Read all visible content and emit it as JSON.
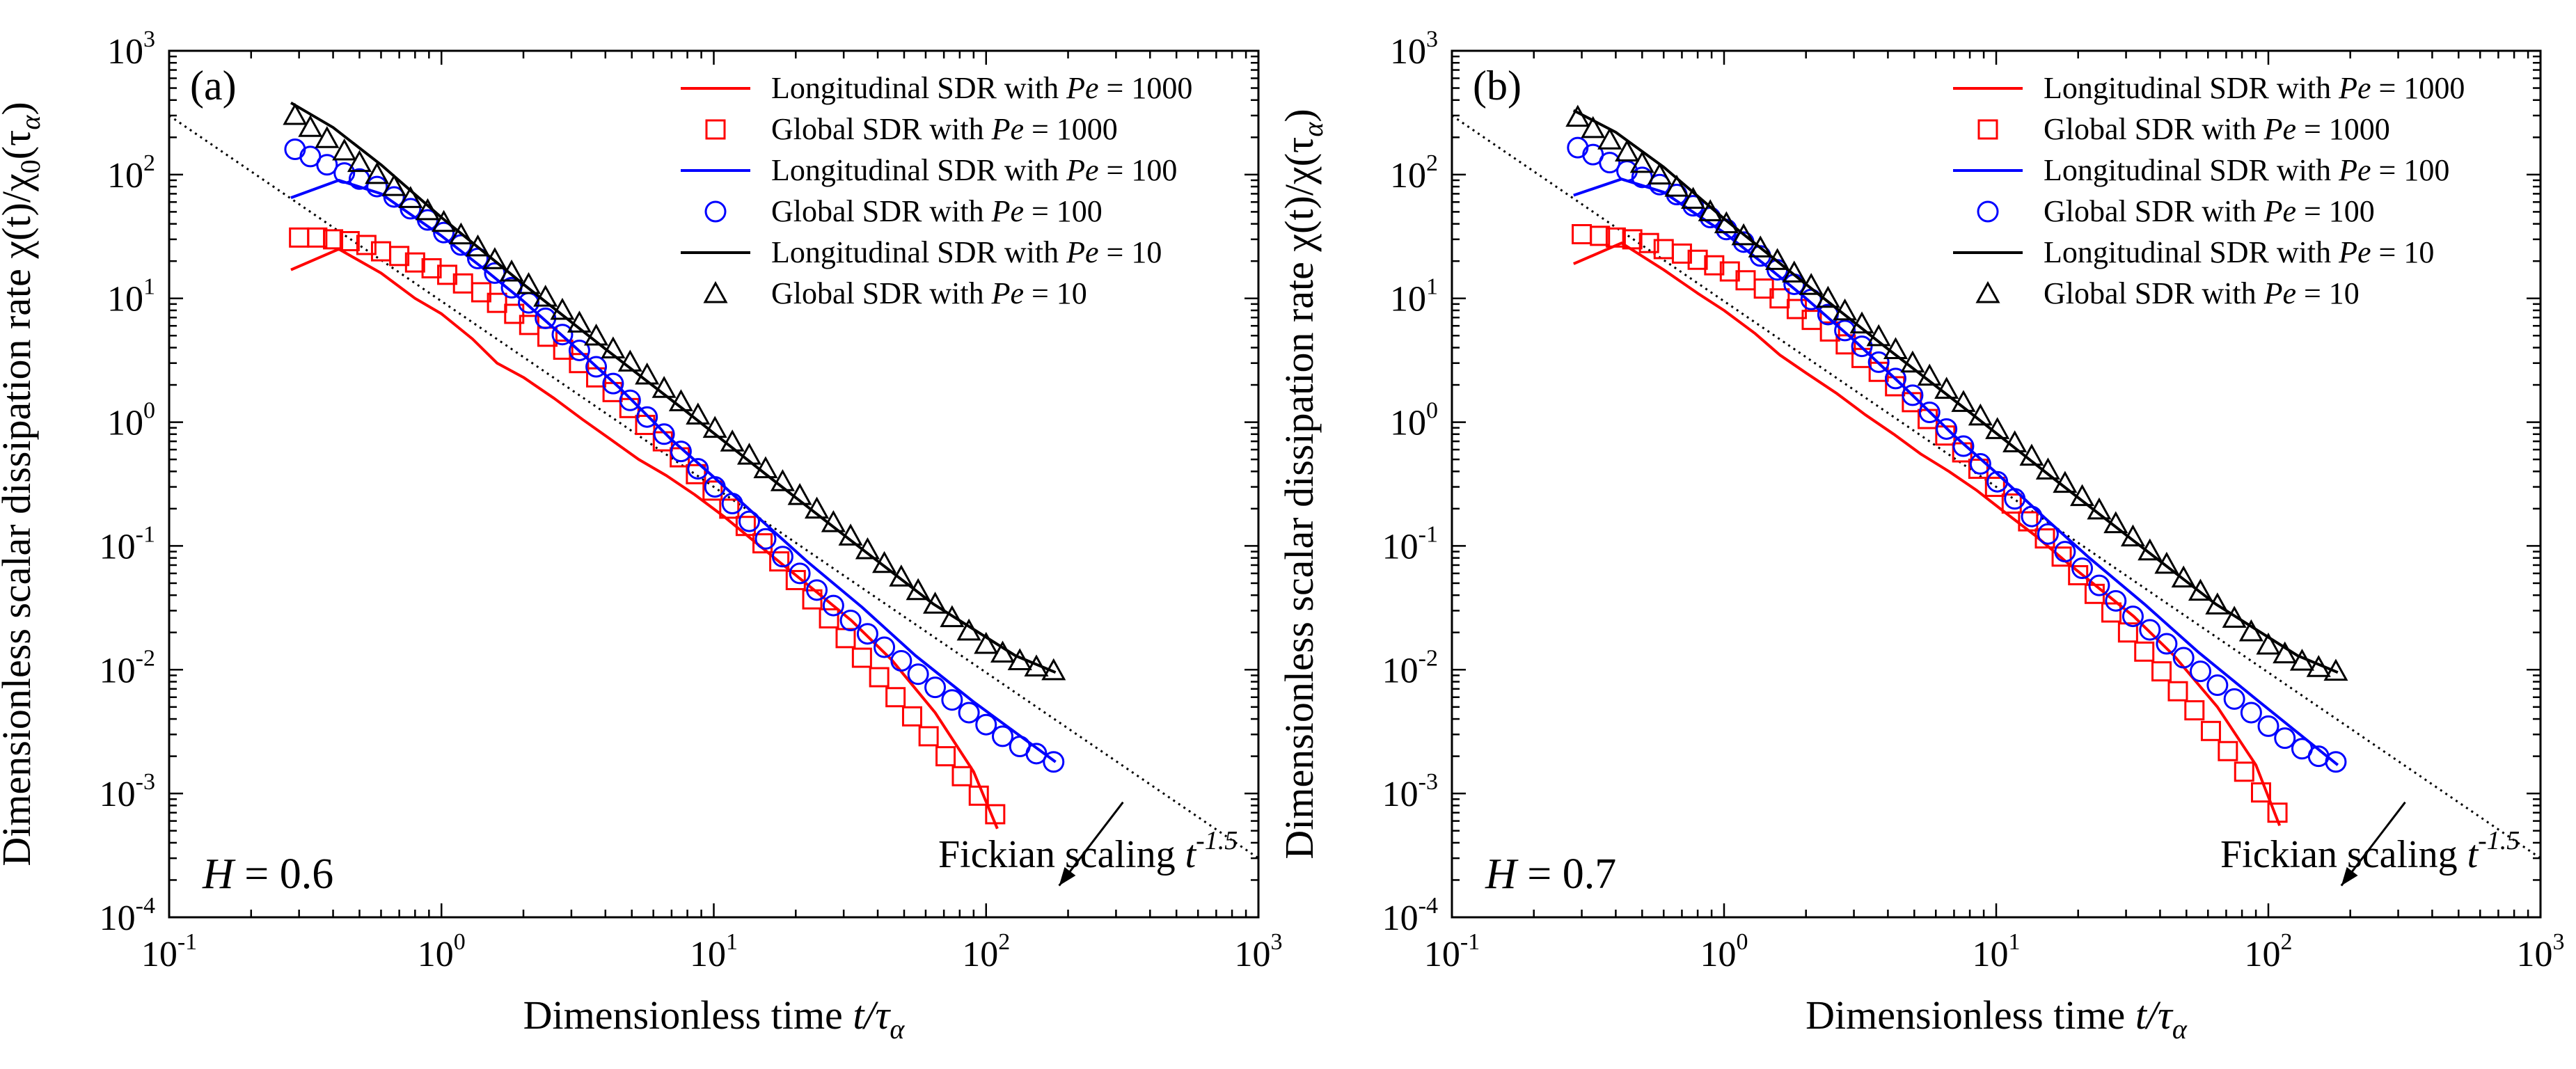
{
  "figure": {
    "x_axis_title": "Dimensionless time",
    "x_axis_var": "t/τ",
    "x_axis_sub": "α"
  },
  "colors": {
    "pe1000": "#ff0000",
    "pe100": "#0000ff",
    "pe10": "#000000"
  },
  "chart_data": [
    {
      "type": "line",
      "panel_label": "(a)",
      "annotation_h": "H = 0.6",
      "fickian_label": "Fickian scaling t",
      "fickian_exponent": "-1.5",
      "ylabel_prefix": "Dimensionless scalar dissipation rate χ(t)/χ",
      "ylabel_sub0": "0",
      "ylabel_mid": "(τ",
      "ylabel_sub1": "α",
      "ylabel_end": ")",
      "xscale": "log",
      "yscale": "log",
      "xlim": [
        0.1,
        1000
      ],
      "ylim": [
        0.0001,
        1000
      ],
      "x_ticks": [
        0.1,
        1,
        10,
        100,
        1000
      ],
      "x_tick_exponents": [
        "-1",
        "0",
        "1",
        "2",
        "3"
      ],
      "y_ticks": [
        0.0001,
        0.001,
        0.01,
        0.1,
        1,
        10,
        100,
        1000
      ],
      "y_tick_exponents": [
        "-4",
        "-3",
        "-2",
        "-1",
        "0",
        "1",
        "2",
        "3"
      ],
      "legend": [
        {
          "label": "Longitudinal SDR with ",
          "pe": "Pe",
          "value": " = 1000"
        },
        {
          "label": "Global SDR with ",
          "pe": "Pe",
          "value": " = 1000"
        },
        {
          "label": "Longitudinal SDR with ",
          "pe": "Pe",
          "value": " = 100"
        },
        {
          "label": "Global SDR with ",
          "pe": "Pe",
          "value": " = 100"
        },
        {
          "label": "Longitudinal SDR with ",
          "pe": "Pe",
          "value": " = 10"
        },
        {
          "label": "Global SDR with ",
          "pe": "Pe",
          "value": " = 10"
        }
      ],
      "fickian_line": {
        "x": [
          0.1,
          1000
        ],
        "y": [
          300,
          0.0003
        ]
      },
      "series": [
        {
          "name": "Longitudinal SDR Pe=1000",
          "kind": "line",
          "color": "pe1000",
          "x": [
            0.28,
            0.42,
            0.6,
            0.8,
            1.0,
            1.3,
            1.6,
            2.0,
            2.6,
            3.3,
            4.2,
            5.3,
            6.7,
            8.5,
            11,
            14,
            18,
            24,
            32,
            45,
            65,
            90,
            110
          ],
          "y": [
            17,
            25,
            16,
            10,
            7.5,
            4.7,
            3.0,
            2.3,
            1.55,
            1.05,
            0.72,
            0.5,
            0.37,
            0.26,
            0.17,
            0.11,
            0.07,
            0.042,
            0.025,
            0.012,
            0.0045,
            0.0015,
            0.00052
          ]
        },
        {
          "name": "Global SDR Pe=1000",
          "kind": "marker",
          "marker": "square",
          "color": "pe1000",
          "x": [
            0.3,
            0.35,
            0.4,
            0.46,
            0.53,
            0.6,
            0.7,
            0.8,
            0.92,
            1.05,
            1.2,
            1.4,
            1.6,
            1.85,
            2.1,
            2.45,
            2.8,
            3.2,
            3.7,
            4.25,
            4.9,
            5.6,
            6.5,
            7.5,
            8.6,
            9.9,
            11.4,
            13.1,
            15.1,
            17.4,
            20,
            23,
            26.5,
            30.5,
            35,
            40.5,
            46.5,
            53.5,
            61.5,
            71,
            81.5,
            94,
            108
          ],
          "y": [
            31,
            31,
            30,
            29,
            27,
            24,
            22,
            19.5,
            17.5,
            15.5,
            13.2,
            11.2,
            9.2,
            7.5,
            6.1,
            4.9,
            3.85,
            3.0,
            2.3,
            1.75,
            1.3,
            0.95,
            0.7,
            0.52,
            0.38,
            0.28,
            0.2,
            0.145,
            0.105,
            0.075,
            0.053,
            0.037,
            0.026,
            0.018,
            0.0125,
            0.0087,
            0.006,
            0.0042,
            0.0029,
            0.002,
            0.00138,
            0.00096,
            0.00068
          ]
        },
        {
          "name": "Longitudinal SDR Pe=100",
          "kind": "line",
          "color": "pe100",
          "x": [
            0.28,
            0.42,
            0.6,
            0.8,
            1.0,
            1.4,
            2.0,
            3.0,
            4.5,
            7,
            10,
            15,
            22,
            35,
            55,
            90,
            180
          ],
          "y": [
            65,
            90,
            70,
            45,
            32,
            18,
            9.5,
            4.3,
            1.9,
            0.72,
            0.36,
            0.16,
            0.075,
            0.032,
            0.013,
            0.0055,
            0.0018
          ]
        },
        {
          "name": "Global SDR Pe=100",
          "kind": "marker",
          "marker": "circle",
          "color": "pe100",
          "x": [
            0.29,
            0.33,
            0.38,
            0.44,
            0.5,
            0.58,
            0.67,
            0.77,
            0.89,
            1.02,
            1.18,
            1.36,
            1.57,
            1.81,
            2.09,
            2.41,
            2.78,
            3.21,
            3.7,
            4.27,
            4.93,
            5.69,
            6.57,
            7.58,
            8.75,
            10.1,
            11.7,
            13.5,
            15.5,
            17.9,
            20.7,
            23.9,
            27.5,
            31.8,
            36.7,
            42.3,
            48.8,
            56.3,
            65,
            75,
            86.5,
            100,
            115,
            133,
            153,
            177
          ],
          "y": [
            160,
            140,
            120,
            103,
            92,
            80,
            66,
            53,
            43,
            34,
            27,
            21,
            16,
            12.2,
            9.2,
            6.9,
            5.1,
            3.8,
            2.8,
            2.05,
            1.5,
            1.1,
            0.8,
            0.58,
            0.42,
            0.3,
            0.22,
            0.158,
            0.114,
            0.082,
            0.06,
            0.044,
            0.033,
            0.025,
            0.0195,
            0.0152,
            0.0118,
            0.0092,
            0.0072,
            0.0057,
            0.0045,
            0.0036,
            0.0029,
            0.0024,
            0.0021,
            0.0018
          ]
        },
        {
          "name": "Longitudinal SDR Pe=10",
          "kind": "line",
          "color": "pe10",
          "x": [
            0.28,
            0.4,
            0.6,
            1.0,
            2.0,
            4.0,
            8.0,
            16,
            32,
            64,
            128,
            180
          ],
          "y": [
            380,
            240,
            120,
            45,
            13,
            3.9,
            1.2,
            0.36,
            0.11,
            0.034,
            0.013,
            0.0095
          ]
        },
        {
          "name": "Global SDR Pe=10",
          "kind": "marker",
          "marker": "triangle",
          "color": "pe10",
          "x": [
            0.29,
            0.33,
            0.38,
            0.44,
            0.5,
            0.58,
            0.67,
            0.77,
            0.89,
            1.02,
            1.18,
            1.36,
            1.57,
            1.81,
            2.09,
            2.41,
            2.78,
            3.21,
            3.7,
            4.27,
            4.93,
            5.69,
            6.57,
            7.58,
            8.75,
            10.1,
            11.7,
            13.5,
            15.5,
            17.9,
            20.7,
            23.9,
            27.5,
            31.8,
            36.7,
            42.3,
            48.8,
            56.3,
            65,
            75,
            86.5,
            100,
            115,
            133,
            153,
            177
          ],
          "y": [
            300,
            240,
            195,
            155,
            125,
            100,
            80,
            64,
            51,
            41,
            32.5,
            26,
            20.5,
            16.3,
            12.9,
            10.2,
            8.0,
            6.3,
            4.95,
            3.9,
            3.05,
            2.4,
            1.87,
            1.46,
            1.14,
            0.89,
            0.69,
            0.54,
            0.42,
            0.33,
            0.255,
            0.198,
            0.154,
            0.12,
            0.093,
            0.072,
            0.056,
            0.0435,
            0.0338,
            0.0263,
            0.0205,
            0.016,
            0.0136,
            0.0118,
            0.0105,
            0.0098
          ]
        }
      ]
    },
    {
      "type": "line",
      "panel_label": "(b)",
      "annotation_h": "H = 0.7",
      "fickian_label": "Fickian scaling t",
      "fickian_exponent": "-1.5",
      "ylabel_prefix": "Dimensionless scalar dissipation rate χ(t)/χ(τ",
      "ylabel_sub0": "",
      "ylabel_mid": "",
      "ylabel_sub1": "α",
      "ylabel_end": ")",
      "xscale": "log",
      "yscale": "log",
      "xlim": [
        0.1,
        1000
      ],
      "ylim": [
        0.0001,
        1000
      ],
      "x_ticks": [
        0.1,
        1,
        10,
        100,
        1000
      ],
      "x_tick_exponents": [
        "-1",
        "0",
        "1",
        "2",
        "3"
      ],
      "y_ticks": [
        0.0001,
        0.001,
        0.01,
        0.1,
        1,
        10,
        100,
        1000
      ],
      "y_tick_exponents": [
        "-4",
        "-3",
        "-2",
        "-1",
        "0",
        "1",
        "2",
        "3"
      ],
      "legend": [
        {
          "label": "Longitudinal SDR with ",
          "pe": "Pe",
          "value": " = 1000"
        },
        {
          "label": "Global SDR with ",
          "pe": "Pe",
          "value": " = 1000"
        },
        {
          "label": "Longitudinal SDR with ",
          "pe": "Pe",
          "value": " = 100"
        },
        {
          "label": "Global SDR with ",
          "pe": "Pe",
          "value": " = 100"
        },
        {
          "label": "Longitudinal SDR with ",
          "pe": "Pe",
          "value": " = 10"
        },
        {
          "label": "Global SDR with ",
          "pe": "Pe",
          "value": " = 10"
        }
      ],
      "fickian_line": {
        "x": [
          0.1,
          1000
        ],
        "y": [
          300,
          0.0003
        ]
      },
      "series": [
        {
          "name": "Longitudinal SDR Pe=1000",
          "kind": "line",
          "color": "pe1000",
          "x": [
            0.28,
            0.42,
            0.6,
            0.8,
            1.0,
            1.3,
            1.6,
            2.0,
            2.6,
            3.3,
            4.2,
            5.3,
            6.7,
            8.5,
            11,
            14,
            18,
            24,
            32,
            45,
            65,
            90,
            110
          ],
          "y": [
            19,
            28,
            17,
            11,
            8,
            5.2,
            3.5,
            2.5,
            1.7,
            1.15,
            0.8,
            0.55,
            0.4,
            0.28,
            0.18,
            0.12,
            0.075,
            0.045,
            0.027,
            0.013,
            0.005,
            0.0017,
            0.00055
          ]
        },
        {
          "name": "Global SDR Pe=1000",
          "kind": "marker",
          "marker": "square",
          "color": "pe1000",
          "x": [
            0.3,
            0.35,
            0.4,
            0.46,
            0.53,
            0.6,
            0.7,
            0.8,
            0.92,
            1.05,
            1.2,
            1.4,
            1.6,
            1.85,
            2.1,
            2.45,
            2.8,
            3.2,
            3.7,
            4.25,
            4.9,
            5.6,
            6.5,
            7.5,
            8.6,
            9.9,
            11.4,
            13.1,
            15.1,
            17.4,
            20,
            23,
            26.5,
            30.5,
            35,
            40.5,
            46.5,
            53.5,
            61.5,
            71,
            81.5,
            94,
            108
          ],
          "y": [
            33,
            32,
            31,
            30,
            28,
            25,
            23,
            20.5,
            18.5,
            16.5,
            14,
            12,
            10,
            8.2,
            6.7,
            5.4,
            4.25,
            3.3,
            2.55,
            1.95,
            1.45,
            1.06,
            0.78,
            0.57,
            0.42,
            0.3,
            0.22,
            0.158,
            0.115,
            0.082,
            0.058,
            0.041,
            0.029,
            0.02,
            0.014,
            0.0097,
            0.0067,
            0.0047,
            0.0032,
            0.0022,
            0.0015,
            0.00102,
            0.0007
          ]
        },
        {
          "name": "Longitudinal SDR Pe=100",
          "kind": "line",
          "color": "pe100",
          "x": [
            0.28,
            0.42,
            0.6,
            0.8,
            1.0,
            1.4,
            2.0,
            3.0,
            4.5,
            7,
            10,
            15,
            22,
            35,
            55,
            90,
            180
          ],
          "y": [
            68,
            92,
            72,
            47,
            34,
            19,
            10,
            4.6,
            2.0,
            0.78,
            0.39,
            0.17,
            0.08,
            0.034,
            0.014,
            0.0058,
            0.0017
          ]
        },
        {
          "name": "Global SDR Pe=100",
          "kind": "marker",
          "marker": "circle",
          "color": "pe100",
          "x": [
            0.29,
            0.33,
            0.38,
            0.44,
            0.5,
            0.58,
            0.67,
            0.77,
            0.89,
            1.02,
            1.18,
            1.36,
            1.57,
            1.81,
            2.09,
            2.41,
            2.78,
            3.21,
            3.7,
            4.27,
            4.93,
            5.69,
            6.57,
            7.58,
            8.75,
            10.1,
            11.7,
            13.5,
            15.5,
            17.9,
            20.7,
            23.9,
            27.5,
            31.8,
            36.7,
            42.3,
            48.8,
            56.3,
            65,
            75,
            86.5,
            100,
            115,
            133,
            153,
            177
          ],
          "y": [
            165,
            145,
            125,
            107,
            95,
            83,
            69,
            56,
            45,
            36,
            28.5,
            22,
            17,
            13,
            9.8,
            7.4,
            5.5,
            4.1,
            3.05,
            2.25,
            1.65,
            1.2,
            0.88,
            0.64,
            0.46,
            0.33,
            0.24,
            0.173,
            0.125,
            0.09,
            0.066,
            0.048,
            0.036,
            0.027,
            0.021,
            0.0162,
            0.0125,
            0.0097,
            0.0075,
            0.0058,
            0.0045,
            0.0035,
            0.0028,
            0.0023,
            0.002,
            0.0018
          ]
        },
        {
          "name": "Longitudinal SDR Pe=10",
          "kind": "line",
          "color": "pe10",
          "x": [
            0.28,
            0.4,
            0.6,
            1.0,
            2.0,
            4.0,
            8.0,
            16,
            32,
            64,
            128,
            180
          ],
          "y": [
            330,
            220,
            115,
            44,
            13,
            3.9,
            1.2,
            0.36,
            0.11,
            0.034,
            0.013,
            0.0095
          ]
        },
        {
          "name": "Global SDR Pe=10",
          "kind": "marker",
          "marker": "triangle",
          "color": "pe10",
          "x": [
            0.29,
            0.33,
            0.38,
            0.44,
            0.5,
            0.58,
            0.67,
            0.77,
            0.89,
            1.02,
            1.18,
            1.36,
            1.57,
            1.81,
            2.09,
            2.41,
            2.78,
            3.21,
            3.7,
            4.27,
            4.93,
            5.69,
            6.57,
            7.58,
            8.75,
            10.1,
            11.7,
            13.5,
            15.5,
            17.9,
            20.7,
            23.9,
            27.5,
            31.8,
            36.7,
            42.3,
            48.8,
            56.3,
            65,
            75,
            86.5,
            100,
            115,
            133,
            153,
            177
          ],
          "y": [
            290,
            235,
            190,
            152,
            123,
            99,
            79,
            63,
            50,
            40,
            32,
            25.5,
            20.2,
            16,
            12.7,
            10,
            7.9,
            6.2,
            4.9,
            3.85,
            3.0,
            2.35,
            1.84,
            1.44,
            1.12,
            0.87,
            0.68,
            0.53,
            0.41,
            0.32,
            0.25,
            0.195,
            0.151,
            0.118,
            0.091,
            0.071,
            0.055,
            0.043,
            0.0333,
            0.026,
            0.0202,
            0.0158,
            0.0134,
            0.0117,
            0.0104,
            0.0097
          ]
        }
      ]
    }
  ]
}
